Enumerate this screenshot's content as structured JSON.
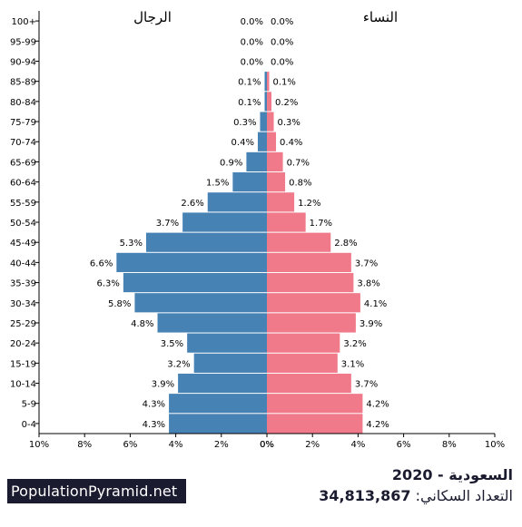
{
  "header": {
    "male_label": "الرجال",
    "female_label": "النساء"
  },
  "footer": {
    "brand": "PopulationPyramid.net",
    "country": "السعودية",
    "year": "2020",
    "separator": " - ",
    "population_label": "التعداد السكاني:",
    "population_value": "34,813,867"
  },
  "colors": {
    "male": "#4682b4",
    "female": "#f07a8a",
    "brand_bg": "#1b1b2f"
  },
  "chart_data": {
    "type": "bar",
    "orientation": "horizontal-pyramid",
    "categories": [
      "0-4",
      "5-9",
      "10-14",
      "15-19",
      "20-24",
      "25-29",
      "30-34",
      "35-39",
      "40-44",
      "45-49",
      "50-54",
      "55-59",
      "60-64",
      "65-69",
      "70-74",
      "75-79",
      "80-84",
      "85-89",
      "90-94",
      "95-99",
      "100+"
    ],
    "series": [
      {
        "name": "الرجال",
        "values": [
          4.3,
          4.3,
          3.9,
          3.2,
          3.5,
          4.8,
          5.8,
          6.3,
          6.6,
          5.3,
          3.7,
          2.6,
          1.5,
          0.9,
          0.4,
          0.3,
          0.1,
          0.1,
          0.0,
          0.0,
          0.0
        ]
      },
      {
        "name": "النساء",
        "values": [
          4.2,
          4.2,
          3.7,
          3.1,
          3.2,
          3.9,
          4.1,
          3.8,
          3.7,
          2.8,
          1.7,
          1.2,
          0.8,
          0.7,
          0.4,
          0.3,
          0.2,
          0.1,
          0.0,
          0.0,
          0.0
        ]
      }
    ],
    "xlim": [
      -10,
      10
    ],
    "x_ticks": [
      "10%",
      "8%",
      "6%",
      "4%",
      "2%",
      "0%",
      "0%",
      "2%",
      "4%",
      "6%",
      "8%",
      "10%"
    ],
    "unit": "%",
    "grid": false
  }
}
